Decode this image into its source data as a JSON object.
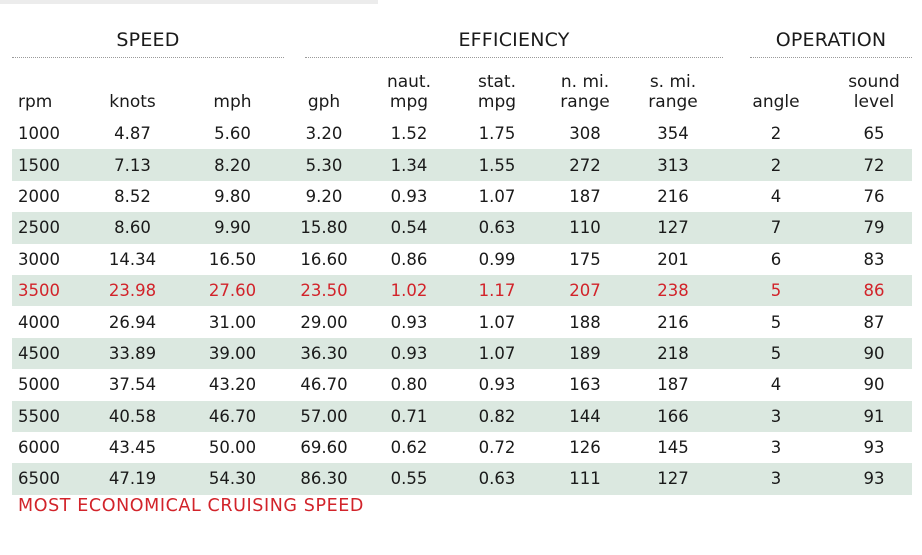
{
  "groups": {
    "speed": "SPEED",
    "efficiency": "EFFICIENCY",
    "operation": "OPERATION"
  },
  "columns": [
    "rpm",
    "knots",
    "mph",
    "gph",
    "naut.\nmpg",
    "stat.\nmpg",
    "n. mi.\nrange",
    "s. mi.\nrange",
    "angle",
    "sound\nlevel"
  ],
  "rows": [
    [
      "1000",
      "4.87",
      "5.60",
      "3.20",
      "1.52",
      "1.75",
      "308",
      "354",
      "2",
      "65"
    ],
    [
      "1500",
      "7.13",
      "8.20",
      "5.30",
      "1.34",
      "1.55",
      "272",
      "313",
      "2",
      "72"
    ],
    [
      "2000",
      "8.52",
      "9.80",
      "9.20",
      "0.93",
      "1.07",
      "187",
      "216",
      "4",
      "76"
    ],
    [
      "2500",
      "8.60",
      "9.90",
      "15.80",
      "0.54",
      "0.63",
      "110",
      "127",
      "7",
      "79"
    ],
    [
      "3000",
      "14.34",
      "16.50",
      "16.60",
      "0.86",
      "0.99",
      "175",
      "201",
      "6",
      "83"
    ],
    [
      "3500",
      "23.98",
      "27.60",
      "23.50",
      "1.02",
      "1.17",
      "207",
      "238",
      "5",
      "86"
    ],
    [
      "4000",
      "26.94",
      "31.00",
      "29.00",
      "0.93",
      "1.07",
      "188",
      "216",
      "5",
      "87"
    ],
    [
      "4500",
      "33.89",
      "39.00",
      "36.30",
      "0.93",
      "1.07",
      "189",
      "218",
      "5",
      "90"
    ],
    [
      "5000",
      "37.54",
      "43.20",
      "46.70",
      "0.80",
      "0.93",
      "163",
      "187",
      "4",
      "90"
    ],
    [
      "5500",
      "40.58",
      "46.70",
      "57.00",
      "0.71",
      "0.82",
      "144",
      "166",
      "3",
      "91"
    ],
    [
      "6000",
      "43.45",
      "50.00",
      "69.60",
      "0.62",
      "0.72",
      "126",
      "145",
      "3",
      "93"
    ],
    [
      "6500",
      "47.19",
      "54.30",
      "86.30",
      "0.55",
      "0.63",
      "111",
      "127",
      "3",
      "93"
    ]
  ],
  "highlight_row": 5,
  "highlight_color": "#d2232a",
  "band_color": "#dbe8e0",
  "note": "MOST ECONOMICAL CRUISING SPEED"
}
